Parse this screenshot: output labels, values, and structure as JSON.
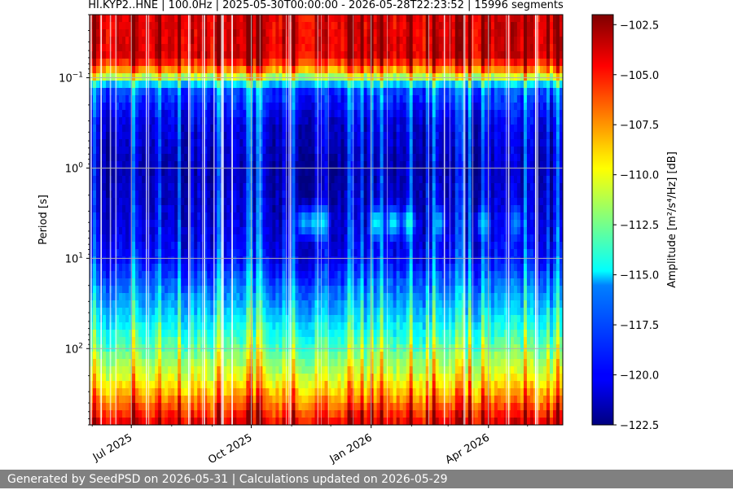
{
  "chart_data": {
    "type": "heatmap",
    "title": "HI.KYP2..HNE | 100.0Hz | 2025-05-30T00:00:00 - 2026-05-28T22:23:52 | 15996 segments",
    "x_range": [
      "2025-05-30",
      "2026-05-28"
    ],
    "x_ticks": [
      {
        "date": "2025-07-01",
        "label": "Jul 2025"
      },
      {
        "date": "2025-10-01",
        "label": "Oct 2025"
      },
      {
        "date": "2026-01-01",
        "label": "Jan 2026"
      },
      {
        "date": "2026-04-01",
        "label": "Apr 2026"
      }
    ],
    "ylabel": "Period [s]",
    "y_scale": "log",
    "y_range": [
      0.02,
      700
    ],
    "y_inverted": true,
    "y_ticks": [
      {
        "value": 0.1,
        "base": "10",
        "exp": "−1"
      },
      {
        "value": 1,
        "base": "10",
        "exp": "0"
      },
      {
        "value": 10,
        "base": "10",
        "exp": "1"
      },
      {
        "value": 100,
        "base": "10",
        "exp": "2"
      }
    ],
    "grid": true,
    "colorbar": {
      "label": "Amplitude [m²/s⁴/Hz] [dB]",
      "colormap": "jet",
      "range": [
        -122.5,
        -102
      ],
      "ticks": [
        "−102.5",
        "−105.0",
        "−107.5",
        "−110.0",
        "−112.5",
        "−115.0",
        "−117.5",
        "−120.0",
        "−122.5"
      ]
    },
    "profile": [
      {
        "period": 0.02,
        "db": -104
      },
      {
        "period": 0.06,
        "db": -104
      },
      {
        "period": 0.09,
        "db": -109
      },
      {
        "period": 0.13,
        "db": -118.5
      },
      {
        "period": 0.3,
        "db": -120.5
      },
      {
        "period": 1,
        "db": -121.5
      },
      {
        "period": 3,
        "db": -121
      },
      {
        "period": 10,
        "db": -120
      },
      {
        "period": 40,
        "db": -116
      },
      {
        "period": 100,
        "db": -113
      },
      {
        "period": 200,
        "db": -110.5
      },
      {
        "period": 400,
        "db": -107
      },
      {
        "period": 700,
        "db": -104
      }
    ],
    "events": [
      {
        "date": "2025-11-10",
        "period": 4,
        "db": -116
      },
      {
        "date": "2025-11-18",
        "period": 4,
        "db": -115.5
      },
      {
        "date": "2025-11-25",
        "period": 4,
        "db": -115
      },
      {
        "date": "2026-01-05",
        "period": 4,
        "db": -114.5
      },
      {
        "date": "2026-01-18",
        "period": 4,
        "db": -114.5
      },
      {
        "date": "2026-01-30",
        "period": 4,
        "db": -114
      },
      {
        "date": "2026-02-22",
        "period": 4,
        "db": -116
      },
      {
        "date": "2026-03-28",
        "period": 4,
        "db": -115.5
      },
      {
        "date": "2026-04-22",
        "period": 4,
        "db": -117
      }
    ]
  },
  "footer": {
    "text": "Generated by SeedPSD on 2026-05-31 | Calculations updated on 2026-05-29"
  }
}
